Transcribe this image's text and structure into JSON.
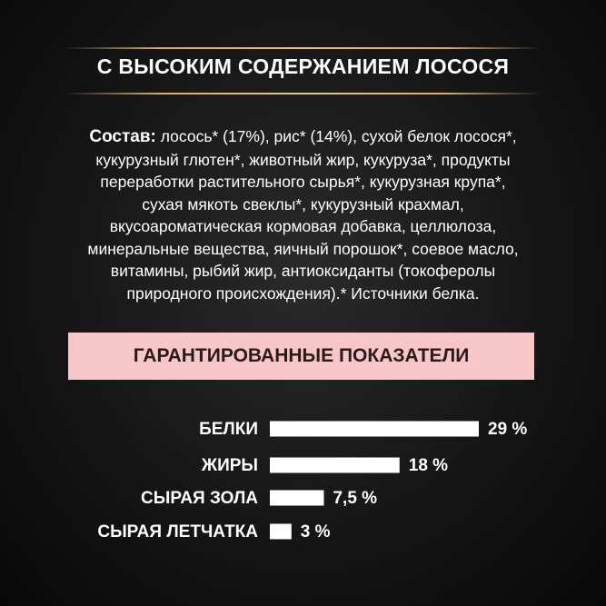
{
  "header": {
    "title": "С ВЫСОКИМ СОДЕРЖАНИЕМ ЛОСОСЯ"
  },
  "composition": {
    "label": "Состав:",
    "lines": [
      "лосось* (17%), рис* (14%), сухой белок лосося*,",
      "кукурузный глютен*, животный жир, кукуруза*, продукты",
      "переработки растительного сырья*, кукурузная крупа*,",
      "сухая мякоть свеклы*, кукурузный крахмал,",
      "вкусоароматическая кормовая добавка, целлюлоза,",
      "минеральные вещества, яичный порошок*, соевое масло,",
      "витамины, рыбий жир, антиоксиданты (токоферолы",
      "природного происхождения).* Источники белка."
    ]
  },
  "chart_data": {
    "type": "hbar",
    "title": "ГАРАНТИРОВАННЫЕ ПОКАЗАТЕЛИ",
    "categories": [
      "БЕЛКИ",
      "ЖИРЫ",
      "СЫРАЯ ЗОЛА",
      "СЫРАЯ ЛЕТЧАТКА"
    ],
    "values": [
      29,
      18,
      7.5,
      3
    ],
    "value_labels": [
      "29 %",
      "18 %",
      "7,5 %",
      "3 %"
    ],
    "color": "#ffffff"
  }
}
